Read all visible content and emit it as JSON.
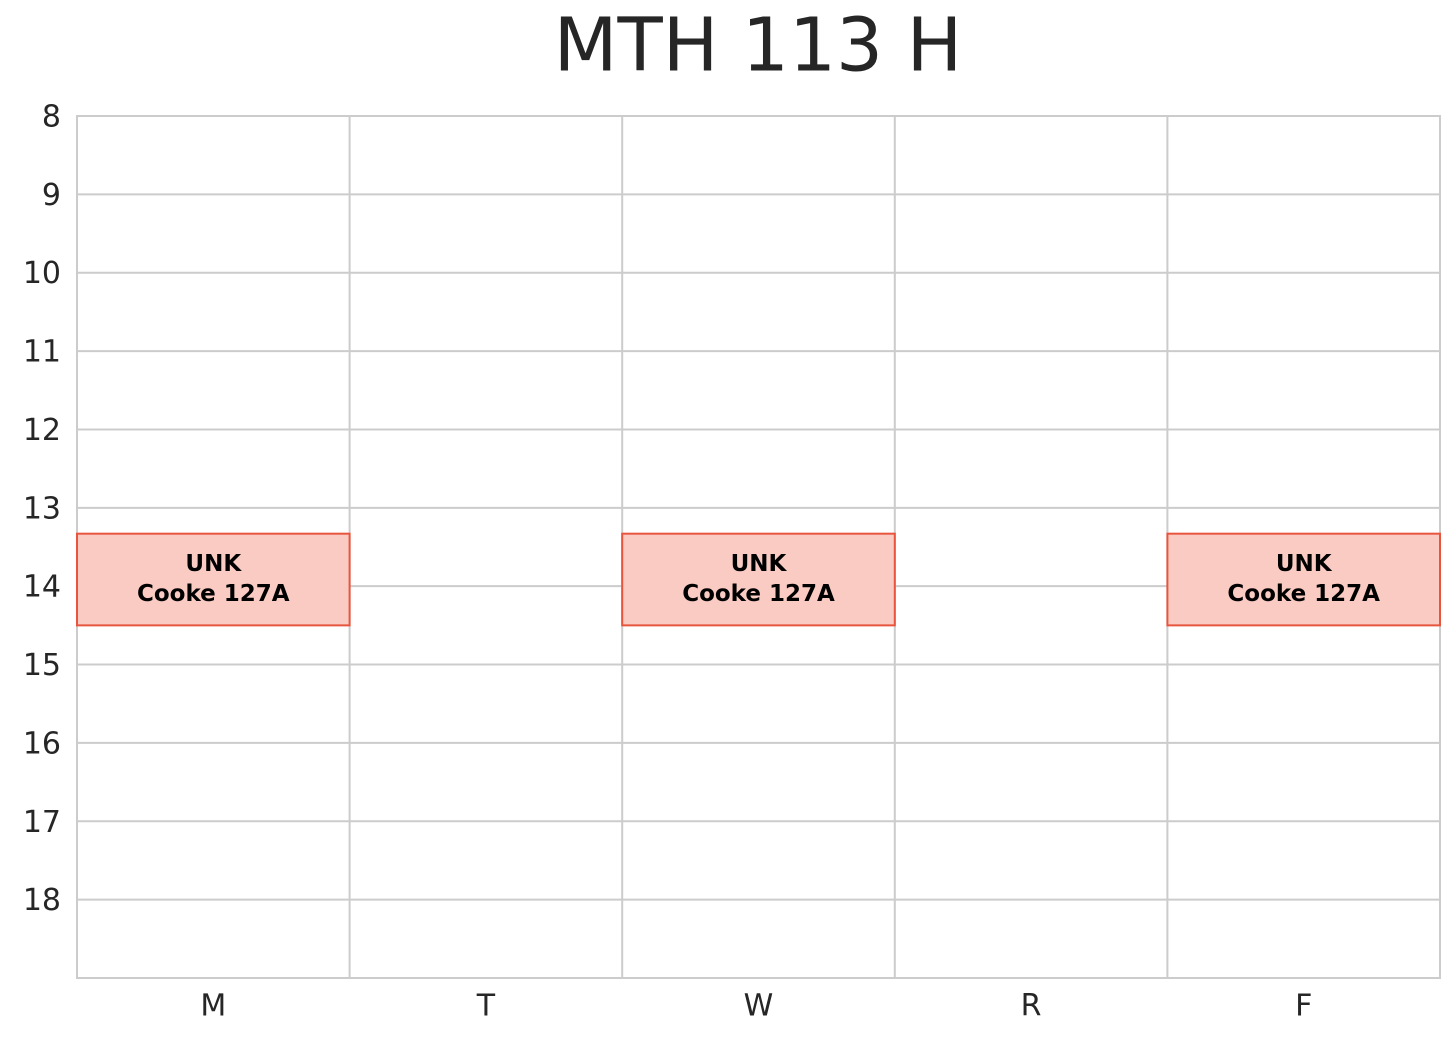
{
  "chart_data": {
    "type": "timetable",
    "title": "MTH 113 H",
    "categories": [
      "M",
      "T",
      "W",
      "R",
      "F"
    ],
    "ylim": [
      8,
      19
    ],
    "yticks": [
      8,
      9,
      10,
      11,
      12,
      13,
      14,
      15,
      16,
      17,
      18
    ],
    "y_inverted": true,
    "grid": true,
    "color": "#f9cbc3",
    "edge_color": "#e8553f",
    "events": [
      {
        "day": 0,
        "start": 13.33,
        "end": 14.5,
        "label": "UNK",
        "room": "Cooke 127A"
      },
      {
        "day": 2,
        "start": 13.33,
        "end": 14.5,
        "label": "UNK",
        "room": "Cooke 127A"
      },
      {
        "day": 4,
        "start": 13.33,
        "end": 14.5,
        "label": "UNK",
        "room": "Cooke 127A"
      }
    ]
  }
}
